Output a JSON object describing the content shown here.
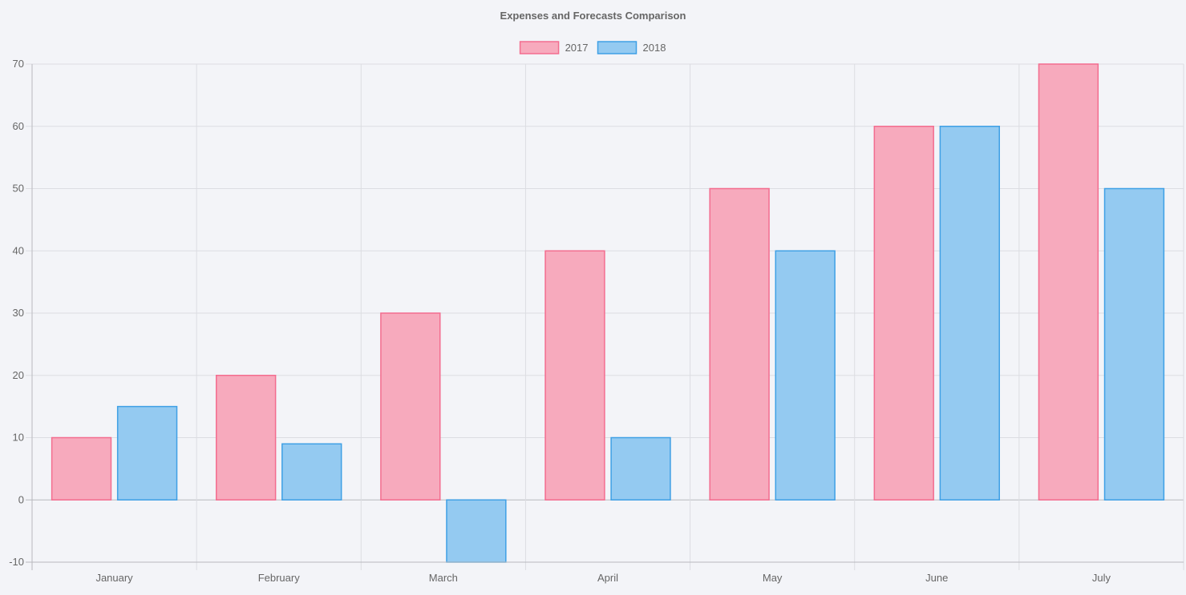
{
  "chart_data": {
    "type": "bar",
    "title": "Expenses and Forecasts Comparison",
    "categories": [
      "January",
      "February",
      "March",
      "April",
      "May",
      "June",
      "July"
    ],
    "series": [
      {
        "name": "2017",
        "values": [
          10,
          20,
          30,
          40,
          50,
          60,
          70
        ],
        "fill": "#f7aabd",
        "stroke": "#f36d8f"
      },
      {
        "name": "2018",
        "values": [
          15,
          9,
          -10,
          10,
          40,
          60,
          50
        ],
        "fill": "#94caf1",
        "stroke": "#3fa0e5"
      }
    ],
    "xlabel": "",
    "ylabel": "",
    "ylim": [
      -10,
      70
    ],
    "yticks": [
      -10,
      0,
      10,
      20,
      30,
      40,
      50,
      60,
      70
    ],
    "grid": true,
    "legend": "top-center"
  },
  "colors": {
    "background": "#f3f4f8",
    "grid": "#dcdde2",
    "axis": "#b8b9be",
    "text": "#666666"
  }
}
